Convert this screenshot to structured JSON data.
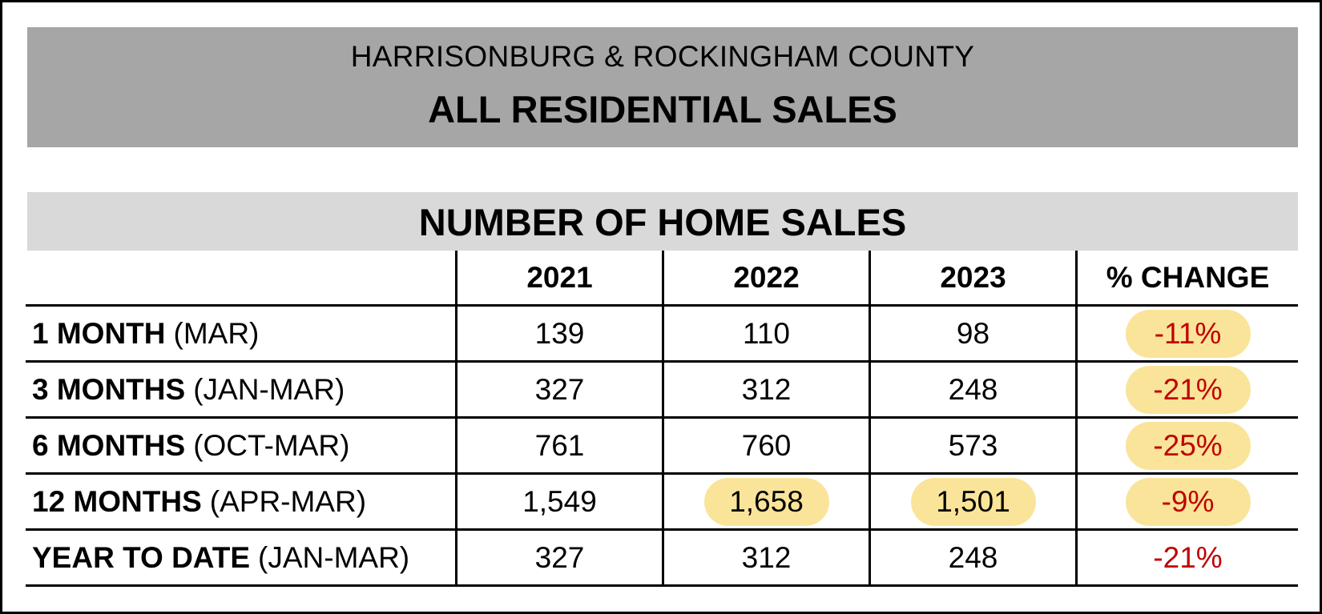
{
  "header": {
    "region": "HARRISONBURG & ROCKINGHAM COUNTY",
    "title": "ALL RESIDENTIAL SALES"
  },
  "table": {
    "title": "NUMBER OF HOME SALES",
    "columns": [
      "",
      "2021",
      "2022",
      "2023",
      "% CHANGE"
    ],
    "rows": [
      {
        "period": "1 MONTH",
        "range": "(MAR)",
        "v2021": "139",
        "v2022": "110",
        "v2023": "98",
        "change": "-11%"
      },
      {
        "period": "3 MONTHS",
        "range": "(JAN-MAR)",
        "v2021": "327",
        "v2022": "312",
        "v2023": "248",
        "change": "-21%"
      },
      {
        "period": "6 MONTHS",
        "range": "(OCT-MAR)",
        "v2021": "761",
        "v2022": "760",
        "v2023": "573",
        "change": "-25%"
      },
      {
        "period": "12 MONTHS",
        "range": "(APR-MAR)",
        "v2021": "1,549",
        "v2022": "1,658",
        "v2023": "1,501",
        "change": "-9%"
      },
      {
        "period": "YEAR TO DATE",
        "range": "(JAN-MAR)",
        "v2021": "327",
        "v2022": "312",
        "v2023": "248",
        "change": "-21%"
      }
    ]
  },
  "colors": {
    "header_bg": "#a6a6a6",
    "band_bg": "#d9d9d9",
    "highlight": "#fae49a",
    "negative": "#c00000"
  }
}
